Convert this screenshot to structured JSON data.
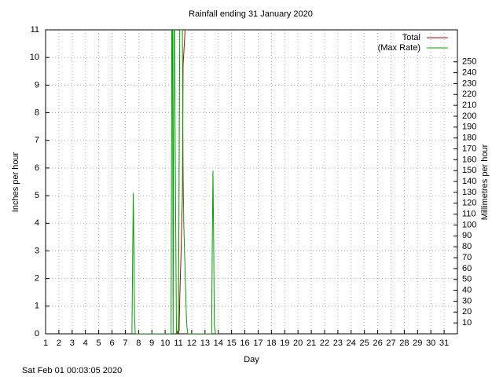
{
  "chart_data": {
    "type": "line",
    "title": "Rainfall ending 31 January 2020",
    "x_label": "Day",
    "y_label": "Inches per hour",
    "y2_label": "Millimetres per hour",
    "footer": "Sat Feb 01 00:03:05 2020",
    "xlim": [
      1,
      32
    ],
    "xticks": [
      1,
      2,
      3,
      4,
      5,
      6,
      7,
      8,
      9,
      10,
      11,
      12,
      13,
      14,
      15,
      16,
      17,
      18,
      19,
      20,
      21,
      22,
      23,
      24,
      25,
      26,
      27,
      28,
      29,
      30,
      31
    ],
    "ylim": [
      0,
      11
    ],
    "yticks": [
      0,
      1,
      2,
      3,
      4,
      5,
      6,
      7,
      8,
      9,
      10,
      11
    ],
    "y2lim": [
      0,
      279.4
    ],
    "y2ticks": [
      10,
      20,
      30,
      40,
      50,
      60,
      70,
      80,
      90,
      100,
      110,
      120,
      130,
      140,
      150,
      160,
      170,
      180,
      190,
      200,
      210,
      220,
      230,
      240,
      250
    ],
    "grid": true,
    "legend": "top-right",
    "series": [
      {
        "name": "Total",
        "color": "#c00000",
        "x": [
          10.9,
          11.0,
          11.05,
          11.1,
          11.2,
          11.3,
          11.35,
          11.5,
          11.6,
          11.7
        ],
        "values": [
          0,
          0.1,
          0.1,
          1.3,
          3,
          5,
          9.7,
          11,
          11,
          11
        ]
      },
      {
        "name": "(Max Rate)",
        "color": "#00a000",
        "x": [
          7.5,
          7.55,
          7.6,
          7.65,
          7.7,
          7.75,
          7.8,
          8.0,
          10.45,
          10.5,
          10.55,
          10.6,
          10.65,
          10.7,
          10.85,
          10.9,
          11.0,
          11.05,
          11.1,
          11.2,
          11.3,
          11.35,
          11.4,
          11.5,
          11.6,
          11.65,
          11.7,
          11.8,
          13.5,
          13.55,
          13.6,
          13.65,
          13.7,
          13.8,
          14.0
        ],
        "values": [
          0,
          2.6,
          5.1,
          2.9,
          0.6,
          0,
          0,
          0,
          0,
          11,
          11,
          0,
          11,
          11,
          0,
          0.1,
          0.1,
          5.5,
          11,
          11,
          11,
          6,
          4,
          2.3,
          0.6,
          0.2,
          0,
          0,
          0,
          3.4,
          5.9,
          3.4,
          0.3,
          0,
          0
        ]
      }
    ]
  }
}
